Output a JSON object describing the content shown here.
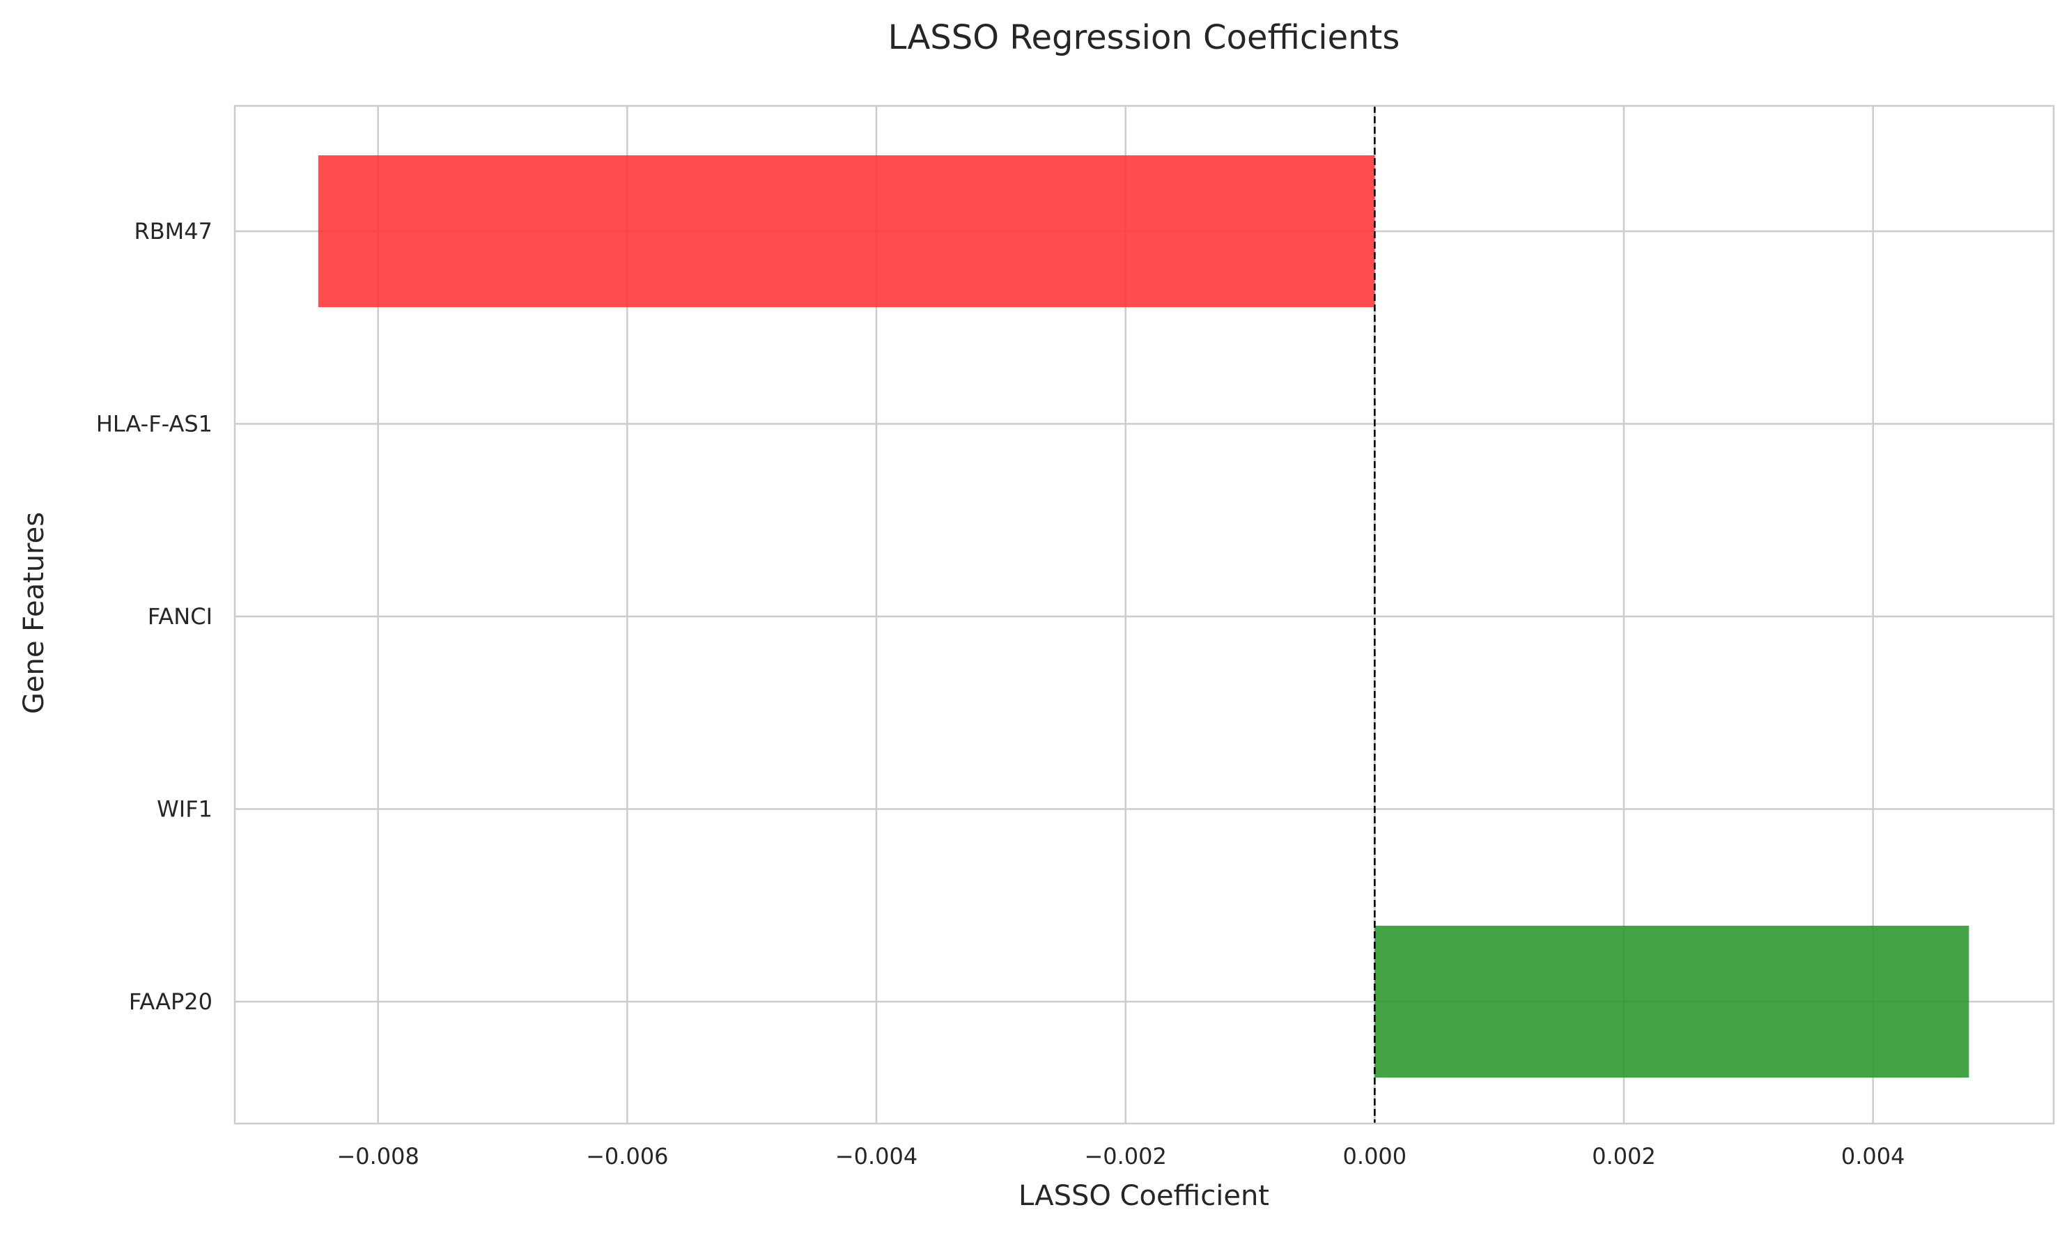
{
  "chart_data": {
    "type": "bar",
    "orientation": "horizontal",
    "title": "LASSO Regression Coefficients",
    "xlabel": "LASSO Coefficient",
    "ylabel": "Gene Features",
    "categories": [
      "RBM47",
      "HLA-F-AS1",
      "FANCI",
      "WIF1",
      "FAAP20"
    ],
    "values": [
      -0.00848,
      0.0,
      0.0,
      0.0,
      0.00477
    ],
    "xlim": [
      -0.00915,
      0.00545
    ],
    "xticks": [
      -0.008,
      -0.006,
      -0.004,
      -0.002,
      0.0,
      0.002,
      0.004
    ],
    "xtick_labels": [
      "−0.008",
      "−0.006",
      "−0.004",
      "−0.002",
      "0.000",
      "0.002",
      "0.004"
    ],
    "grid": true,
    "zero_line": "dashed",
    "colors": {
      "negative": "#ff3333",
      "positive": "#2a962a",
      "grid": "#cccccc",
      "zero_line": "#000000",
      "text": "#262626"
    }
  }
}
